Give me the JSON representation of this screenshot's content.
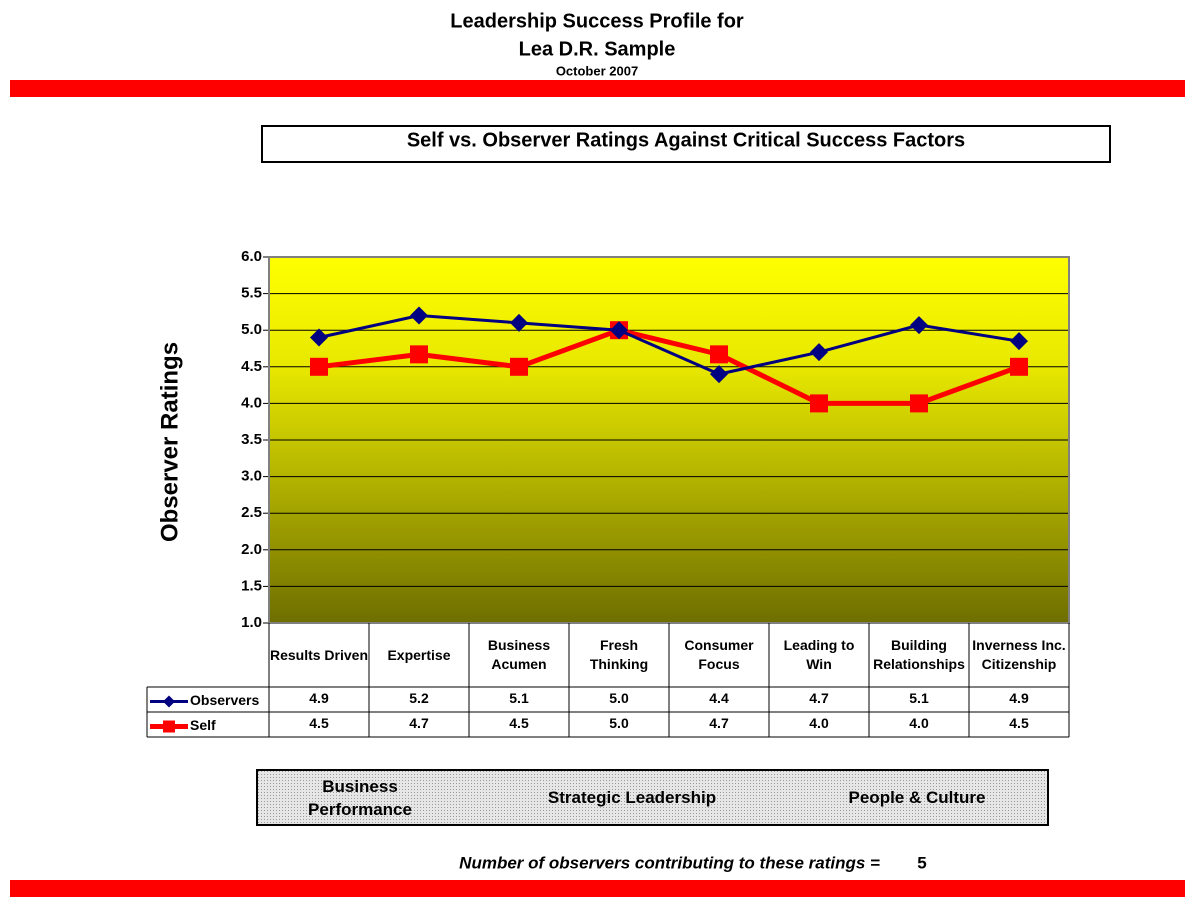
{
  "header": {
    "title_line1": "Leadership Success Profile for",
    "title_line2": "Lea D.R. Sample",
    "date": "October 2007"
  },
  "chart_data": {
    "type": "line",
    "title": "Self vs. Observer Ratings Against Critical Success Factors",
    "y_label": "Observer Ratings",
    "categories": [
      "Results Driven",
      "Expertise",
      "Business Acumen",
      "Fresh Thinking",
      "Consumer Focus",
      "Leading to Win",
      "Building Relationships",
      "Inverness Inc. Citizenship"
    ],
    "series": [
      {
        "name": "Observers",
        "color": "#000080",
        "marker": "diamond",
        "values": [
          4.9,
          5.2,
          5.1,
          5.0,
          4.4,
          4.7,
          5.07,
          4.85
        ],
        "value_labels": [
          "4.9",
          "5.2",
          "5.1",
          "5.0",
          "4.4",
          "4.7",
          "5.1",
          "4.9"
        ]
      },
      {
        "name": "Self",
        "color": "#ff0000",
        "marker": "square",
        "values": [
          4.5,
          4.67,
          4.5,
          5.0,
          4.67,
          4.0,
          4.0,
          4.5
        ],
        "value_labels": [
          "4.5",
          "4.7",
          "4.5",
          "5.0",
          "4.7",
          "4.0",
          "4.0",
          "4.5"
        ]
      }
    ],
    "ylim": [
      1,
      6
    ],
    "yticks": [
      {
        "value": 1,
        "label": "1.0"
      },
      {
        "value": 1.5,
        "label": "1.5"
      },
      {
        "value": 2,
        "label": "2.0"
      },
      {
        "value": 2.5,
        "label": "2.5"
      },
      {
        "value": 3,
        "label": "3.0"
      },
      {
        "value": 3.5,
        "label": "3.5"
      },
      {
        "value": 4,
        "label": "4.0"
      },
      {
        "value": 4.5,
        "label": "4.5"
      },
      {
        "value": 5,
        "label": "5.0"
      },
      {
        "value": 5.5,
        "label": "5.5"
      },
      {
        "value": 6,
        "label": "6.0"
      }
    ],
    "grid": true
  },
  "groups": [
    "Business Performance",
    "Strategic Leadership",
    "People & Culture"
  ],
  "footer": {
    "label": "Number of observers contributing to these ratings =",
    "value": 5
  }
}
